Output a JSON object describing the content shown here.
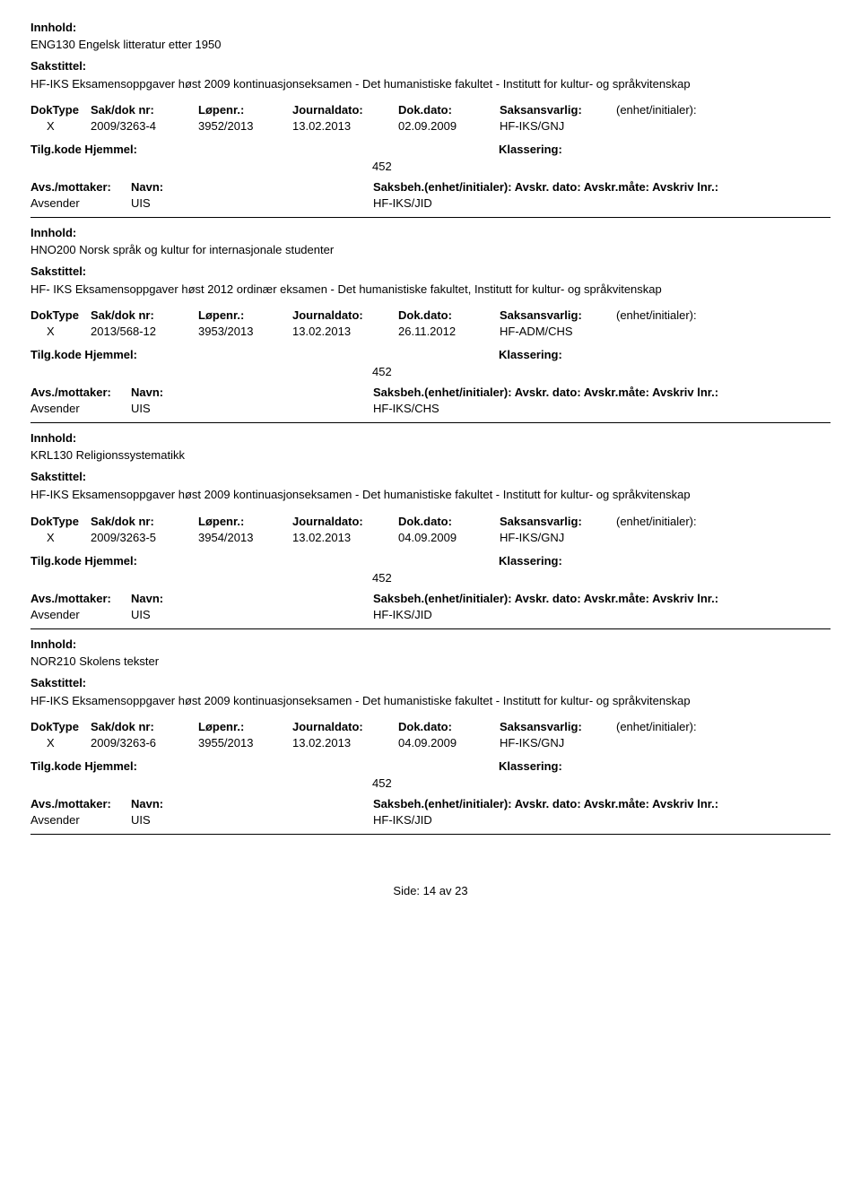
{
  "labels": {
    "innhold": "Innhold:",
    "sakstittel": "Sakstittel:",
    "doktype": "DokType",
    "saknr": "Sak/dok nr:",
    "lopenr": "Løpenr.:",
    "journaldato": "Journaldato:",
    "dokdato": "Dok.dato:",
    "saksansvarlig": "Saksansvarlig:",
    "enhet": "(enhet/initialer):",
    "tilgkode": "Tilg.kode",
    "hjemmel": "Hjemmel:",
    "klassering": "Klassering:",
    "avsmottaker": "Avs./mottaker:",
    "navn": "Navn:",
    "saksbeh_full": "Saksbeh.(enhet/initialer): Avskr. dato: Avskr.måte: Avskriv lnr.:",
    "avsender": "Avsender"
  },
  "records": [
    {
      "innhold": "ENG130 Engelsk litteratur etter 1950",
      "sakstittel": "HF-IKS Eksamensoppgaver høst 2009 kontinuasjonseksamen - Det humanistiske fakultet - Institutt for kultur- og språkvitenskap",
      "doktype": "X",
      "saknr": "2009/3263-4",
      "lopenr": "3952/2013",
      "journaldato": "13.02.2013",
      "dokdato": "02.09.2009",
      "saksansvarlig": "HF-IKS/GNJ",
      "klassering": "452",
      "avsender_value": "UIS",
      "saksbeh": "HF-IKS/JID"
    },
    {
      "innhold": "HNO200 Norsk språk og kultur for internasjonale studenter",
      "sakstittel": "HF- IKS Eksamensoppgaver høst 2012 ordinær eksamen - Det humanistiske fakultet, Institutt for kultur- og språkvitenskap",
      "doktype": "X",
      "saknr": "2013/568-12",
      "lopenr": "3953/2013",
      "journaldato": "13.02.2013",
      "dokdato": "26.11.2012",
      "saksansvarlig": "HF-ADM/CHS",
      "klassering": "452",
      "avsender_value": "UIS",
      "saksbeh": "HF-IKS/CHS"
    },
    {
      "innhold": "KRL130 Religionssystematikk",
      "sakstittel": "HF-IKS Eksamensoppgaver høst 2009 kontinuasjonseksamen - Det humanistiske fakultet - Institutt for kultur- og språkvitenskap",
      "doktype": "X",
      "saknr": "2009/3263-5",
      "lopenr": "3954/2013",
      "journaldato": "13.02.2013",
      "dokdato": "04.09.2009",
      "saksansvarlig": "HF-IKS/GNJ",
      "klassering": "452",
      "avsender_value": "UIS",
      "saksbeh": "HF-IKS/JID"
    },
    {
      "innhold": "NOR210 Skolens tekster",
      "sakstittel": "HF-IKS Eksamensoppgaver høst 2009 kontinuasjonseksamen - Det humanistiske fakultet - Institutt for kultur- og språkvitenskap",
      "doktype": "X",
      "saknr": "2009/3263-6",
      "lopenr": "3955/2013",
      "journaldato": "13.02.2013",
      "dokdato": "04.09.2009",
      "saksansvarlig": "HF-IKS/GNJ",
      "klassering": "452",
      "avsender_value": "UIS",
      "saksbeh": "HF-IKS/JID"
    }
  ],
  "footer": {
    "side_label": "Side:",
    "page_current": "14",
    "page_sep": "av",
    "page_total": "23"
  }
}
